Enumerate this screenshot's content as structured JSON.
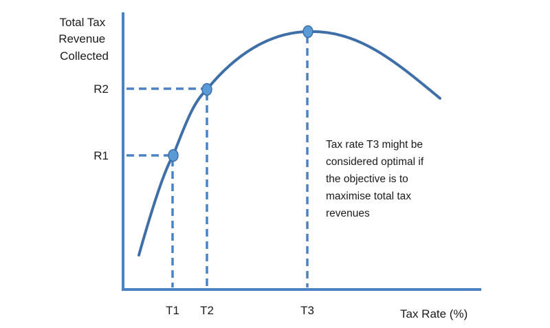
{
  "diagram": {
    "y_axis_label": [
      "Total Tax",
      "Revenue",
      "Collected"
    ],
    "x_axis_label": "Tax Rate (%)",
    "y_ticks": [
      "R1",
      "R2"
    ],
    "x_ticks": [
      "T1",
      "T2",
      "T3"
    ],
    "annotation": [
      "Tax rate T3 might be",
      "considered optimal if",
      "the objective is to",
      "maximise total tax",
      "revenues"
    ],
    "colors": {
      "axis": "#4a82c4",
      "curve": "#3e6fa8",
      "guides": "#4a82c4",
      "points": "#5b9bd5"
    }
  }
}
